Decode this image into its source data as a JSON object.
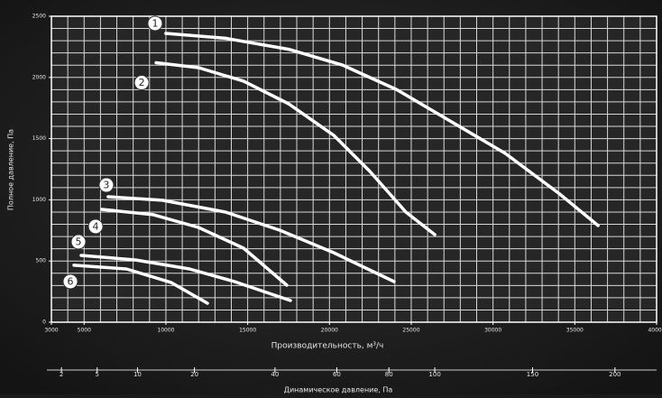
{
  "chart_data": {
    "type": "line",
    "ylabel": "Полное давление, Па",
    "xlabel": "Производительность, м³/ч",
    "x2label": "Динамическое давление, Па",
    "xlim": [
      3000,
      40000
    ],
    "ylim": [
      0,
      2500
    ],
    "xticks": [
      3000,
      5000,
      10000,
      15000,
      20000,
      25000,
      30000,
      35000,
      40000
    ],
    "yticks": [
      0,
      500,
      1000,
      1500,
      2000,
      2500
    ],
    "xgrid": [
      3000,
      4000,
      5000,
      6000,
      7000,
      8000,
      9000,
      10000,
      11000,
      12000,
      13000,
      14000,
      15000,
      16000,
      17000,
      18000,
      19000,
      20000,
      21000,
      22000,
      23000,
      24000,
      25000,
      26000,
      27000,
      28000,
      29000,
      30000,
      31000,
      32000,
      33000,
      34000,
      35000,
      36000,
      37000,
      38000,
      39000,
      40000
    ],
    "ygrid": [
      0,
      100,
      200,
      300,
      400,
      500,
      600,
      700,
      800,
      900,
      1000,
      1100,
      1200,
      1300,
      1400,
      1500,
      1600,
      1700,
      1800,
      1900,
      2000,
      2100,
      2200,
      2300,
      2400,
      2500
    ],
    "x2scale": "sqrt",
    "x2lim": [
      1.4,
      228
    ],
    "x2ticks": [
      2,
      5,
      10,
      20,
      40,
      60,
      80,
      100,
      150,
      200
    ],
    "grid": true,
    "series": [
      {
        "name": "1",
        "color": "#ffffff",
        "x": [
          10000,
          13640,
          17500,
          20810,
          24120,
          27430,
          30740,
          34050,
          36420
        ],
        "values": [
          2360,
          2320,
          2230,
          2100,
          1900,
          1640,
          1380,
          1050,
          790
        ]
      },
      {
        "name": "2",
        "color": "#ffffff",
        "x": [
          9400,
          12000,
          14750,
          17500,
          20260,
          22470,
          24670,
          26440
        ],
        "values": [
          2120,
          2080,
          1970,
          1785,
          1527,
          1232,
          900,
          715
        ]
      },
      {
        "name": "3",
        "color": "#ffffff",
        "x": [
          6470,
          9780,
          13640,
          16950,
          20260,
          23950
        ],
        "values": [
          1025,
          996,
          900,
          752,
          568,
          332
        ]
      },
      {
        "name": "4",
        "color": "#ffffff",
        "x": [
          6090,
          9230,
          11990,
          14750,
          17390
        ],
        "values": [
          922,
          878,
          774,
          605,
          302
        ]
      },
      {
        "name": "5",
        "color": "#ffffff",
        "x": [
          4820,
          8130,
          11440,
          14190,
          17610
        ],
        "values": [
          546,
          509,
          435,
          332,
          177
        ]
      },
      {
        "name": "6",
        "color": "#ffffff",
        "x": [
          4380,
          7580,
          10330,
          12540
        ],
        "values": [
          465,
          435,
          324,
          155
        ]
      }
    ]
  }
}
